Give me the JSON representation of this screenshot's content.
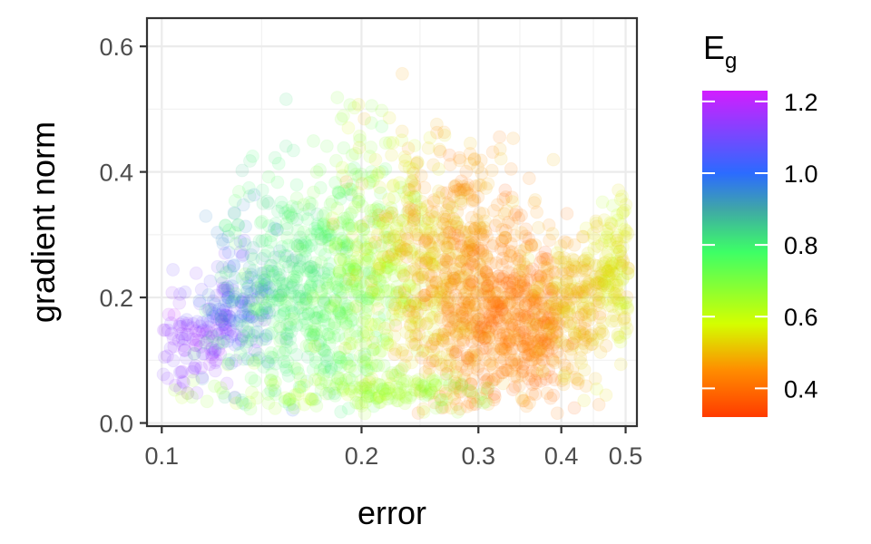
{
  "chart_data": {
    "type": "scatter",
    "xlabel": "error",
    "ylabel": "gradient norm",
    "x_scale": "log",
    "xlim": [
      0.095,
      0.52
    ],
    "ylim": [
      -0.005,
      0.645
    ],
    "x_ticks": [
      {
        "value": 0.1,
        "label": "0.1"
      },
      {
        "value": 0.2,
        "label": "0.2"
      },
      {
        "value": 0.3,
        "label": "0.3"
      },
      {
        "value": 0.4,
        "label": "0.4"
      },
      {
        "value": 0.5,
        "label": "0.5"
      }
    ],
    "y_ticks": [
      {
        "value": 0.0,
        "label": "0.0"
      },
      {
        "value": 0.2,
        "label": "0.2"
      },
      {
        "value": 0.4,
        "label": "0.4"
      },
      {
        "value": 0.6,
        "label": "0.6"
      }
    ],
    "grid": true,
    "colorbar": {
      "title": "E",
      "title_subscript": "g",
      "range": [
        0.32,
        1.23
      ],
      "ticks": [
        {
          "value": 0.4,
          "label": "0.4"
        },
        {
          "value": 0.6,
          "label": "0.6"
        },
        {
          "value": 0.8,
          "label": "0.8"
        },
        {
          "value": 1.0,
          "label": "1.0"
        },
        {
          "value": 1.2,
          "label": "1.2"
        }
      ],
      "colormap": [
        {
          "value": 0.32,
          "color": "#ff3b00"
        },
        {
          "value": 0.45,
          "color": "#ff8c00"
        },
        {
          "value": 0.58,
          "color": "#d4ff00"
        },
        {
          "value": 0.78,
          "color": "#3dff66"
        },
        {
          "value": 0.9,
          "color": "#3fa6a8"
        },
        {
          "value": 1.0,
          "color": "#2b6bff"
        },
        {
          "value": 1.23,
          "color": "#d21dff"
        }
      ]
    },
    "clusters": [
      {
        "x": 0.11,
        "y": 0.12,
        "sx": 0.01,
        "sy": 0.035,
        "c": 1.15,
        "n": 120
      },
      {
        "x": 0.125,
        "y": 0.18,
        "sx": 0.008,
        "sy": 0.04,
        "c": 1.1,
        "n": 80
      },
      {
        "x": 0.135,
        "y": 0.2,
        "sx": 0.01,
        "sy": 0.07,
        "c": 0.95,
        "n": 90
      },
      {
        "x": 0.15,
        "y": 0.2,
        "sx": 0.015,
        "sy": 0.1,
        "c": 0.8,
        "n": 200
      },
      {
        "x": 0.17,
        "y": 0.2,
        "sx": 0.015,
        "sy": 0.1,
        "c": 0.78,
        "n": 200
      },
      {
        "x": 0.19,
        "y": 0.22,
        "sx": 0.015,
        "sy": 0.11,
        "c": 0.72,
        "n": 200
      },
      {
        "x": 0.21,
        "y": 0.24,
        "sx": 0.015,
        "sy": 0.1,
        "c": 0.65,
        "n": 180
      },
      {
        "x": 0.24,
        "y": 0.25,
        "sx": 0.02,
        "sy": 0.12,
        "c": 0.55,
        "n": 220
      },
      {
        "x": 0.27,
        "y": 0.2,
        "sx": 0.02,
        "sy": 0.1,
        "c": 0.47,
        "n": 260
      },
      {
        "x": 0.31,
        "y": 0.18,
        "sx": 0.03,
        "sy": 0.08,
        "c": 0.43,
        "n": 320
      },
      {
        "x": 0.36,
        "y": 0.15,
        "sx": 0.03,
        "sy": 0.07,
        "c": 0.42,
        "n": 300
      },
      {
        "x": 0.42,
        "y": 0.18,
        "sx": 0.03,
        "sy": 0.06,
        "c": 0.5,
        "n": 200
      },
      {
        "x": 0.48,
        "y": 0.25,
        "sx": 0.02,
        "sy": 0.05,
        "c": 0.56,
        "n": 150
      },
      {
        "x": 0.29,
        "y": 0.35,
        "sx": 0.04,
        "sy": 0.05,
        "c": 0.47,
        "n": 120
      },
      {
        "x": 0.2,
        "y": 0.05,
        "sx": 0.05,
        "sy": 0.015,
        "c": 0.65,
        "n": 160
      }
    ]
  }
}
